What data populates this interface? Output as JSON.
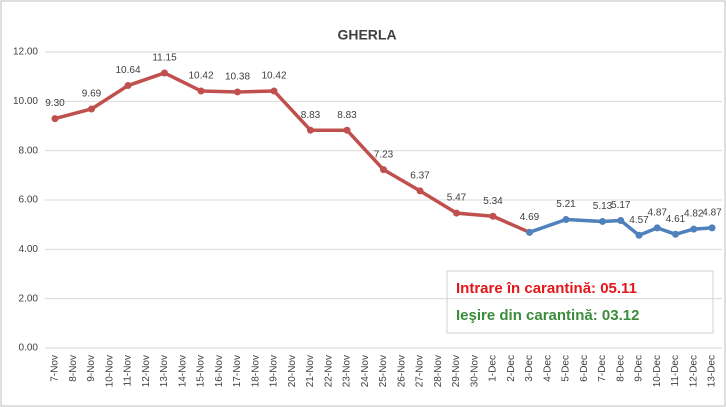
{
  "chart_data": {
    "type": "line",
    "title": "GHERLA",
    "categories": [
      "7-Nov",
      "8-Nov",
      "9-Nov",
      "10-Nov",
      "11-Nov",
      "12-Nov",
      "13-Nov",
      "14-Nov",
      "15-Nov",
      "16-Nov",
      "17-Nov",
      "18-Nov",
      "19-Nov",
      "20-Nov",
      "21-Nov",
      "22-Nov",
      "23-Nov",
      "24-Nov",
      "25-Nov",
      "26-Nov",
      "27-Nov",
      "28-Nov",
      "29-Nov",
      "30-Nov",
      "1-Dec",
      "2-Dec",
      "3-Dec",
      "4-Dec",
      "5-Dec",
      "6-Dec",
      "7-Dec",
      "8-Dec",
      "9-Dec",
      "10-Dec",
      "11-Dec",
      "12-Dec",
      "13-Dec"
    ],
    "series": [
      {
        "color": "#c0504d",
        "values": [
          9.3,
          null,
          9.69,
          null,
          10.64,
          null,
          11.15,
          null,
          10.42,
          null,
          10.38,
          null,
          10.42,
          null,
          8.83,
          null,
          8.83,
          null,
          7.23,
          null,
          6.37,
          null,
          5.47,
          null,
          5.34,
          null,
          4.69,
          null,
          null,
          null,
          null,
          null,
          null,
          null,
          null,
          null,
          null
        ],
        "value_labels": [
          "9.30",
          null,
          "9.69",
          null,
          "10.64",
          null,
          "11.15",
          null,
          "10.42",
          null,
          "10.38",
          null,
          "10.42",
          null,
          "8.83",
          null,
          "8.83",
          null,
          "7.23",
          null,
          "6.37",
          null,
          "5.47",
          null,
          "5.34",
          null,
          "4.69",
          null,
          null,
          null,
          null,
          null,
          null,
          null,
          null,
          null,
          null
        ]
      },
      {
        "color": "#4f81bd",
        "values": [
          null,
          null,
          null,
          null,
          null,
          null,
          null,
          null,
          null,
          null,
          null,
          null,
          null,
          null,
          null,
          null,
          null,
          null,
          null,
          null,
          null,
          null,
          null,
          null,
          null,
          null,
          4.69,
          null,
          5.21,
          null,
          5.13,
          5.17,
          4.57,
          4.87,
          4.61,
          4.82,
          4.87
        ]
      }
    ],
    "connect_gaps": true,
    "ylim": [
      0,
      12
    ],
    "yticks": [
      {
        "value": 0,
        "label": "0.00"
      },
      {
        "value": 2,
        "label": "2.00"
      },
      {
        "value": 4,
        "label": "4.00"
      },
      {
        "value": 6,
        "label": "6.00"
      },
      {
        "value": 8,
        "label": "8.00"
      },
      {
        "value": 10,
        "label": "10.00"
      },
      {
        "value": 12,
        "label": "12.00"
      }
    ],
    "grid": true,
    "annotations": [
      {
        "text": "Intrare în carantină: 05.11",
        "color": "#e3161b"
      },
      {
        "text": "Ieşire din carantină: 03.12",
        "color": "#3c8c3c"
      }
    ]
  }
}
